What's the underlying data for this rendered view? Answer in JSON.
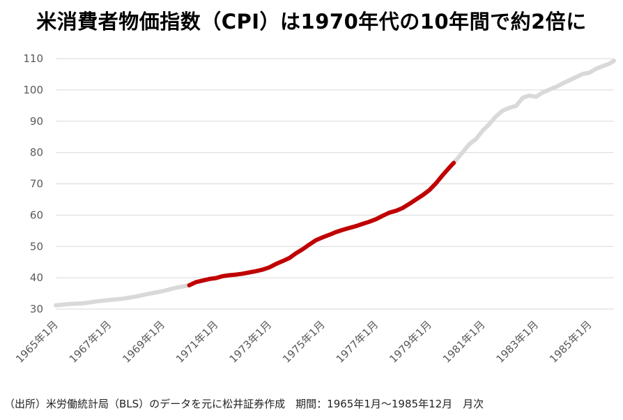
{
  "title": "米消費者物価指数（CPI）は1970年代の10年間で約2倍に",
  "source": "（出所）米労働統計局（BLS）のデータを元に松井証券作成　期間：1965年1月～1985年12月　月次",
  "colors": {
    "base_line": "#d9d9d9",
    "highlight_line": "#c00000",
    "grid": "#d9d9d9",
    "axis_text": "#595959"
  },
  "chart_data": {
    "type": "line",
    "title": "米消費者物価指数（CPI）は1970年代の10年間で約2倍に",
    "xlabel": "",
    "ylabel": "",
    "ylim": [
      30,
      110
    ],
    "yticks": [
      "30",
      "40",
      "50",
      "60",
      "70",
      "80",
      "90",
      "100",
      "110"
    ],
    "xticks": [
      "1965年1月",
      "1967年1月",
      "1969年1月",
      "1971年1月",
      "1973年1月",
      "1975年1月",
      "1977年1月",
      "1979年1月",
      "1981年1月",
      "1983年1月",
      "1985年1月"
    ],
    "x_range": [
      "1965-01",
      "1985-12"
    ],
    "grid": true,
    "highlight_range": [
      "1970-01",
      "1979-12"
    ],
    "series": [
      {
        "points": [
          [
            "1965-01",
            31.2
          ],
          [
            "1965-07",
            31.6
          ],
          [
            "1966-01",
            31.8
          ],
          [
            "1966-07",
            32.4
          ],
          [
            "1967-01",
            32.9
          ],
          [
            "1967-07",
            33.3
          ],
          [
            "1968-01",
            34.0
          ],
          [
            "1968-07",
            34.9
          ],
          [
            "1969-01",
            35.7
          ],
          [
            "1969-07",
            36.8
          ],
          [
            "1970-01",
            37.6
          ],
          [
            "1970-04",
            38.6
          ],
          [
            "1970-07",
            39.1
          ],
          [
            "1970-10",
            39.6
          ],
          [
            "1971-01",
            39.9
          ],
          [
            "1971-04",
            40.5
          ],
          [
            "1971-07",
            40.8
          ],
          [
            "1971-10",
            41.0
          ],
          [
            "1972-01",
            41.3
          ],
          [
            "1972-04",
            41.7
          ],
          [
            "1972-07",
            42.1
          ],
          [
            "1972-10",
            42.6
          ],
          [
            "1973-01",
            43.3
          ],
          [
            "1973-04",
            44.4
          ],
          [
            "1973-07",
            45.3
          ],
          [
            "1973-10",
            46.3
          ],
          [
            "1974-01",
            47.8
          ],
          [
            "1974-04",
            49.1
          ],
          [
            "1974-07",
            50.6
          ],
          [
            "1974-10",
            52.0
          ],
          [
            "1975-01",
            52.9
          ],
          [
            "1975-04",
            53.7
          ],
          [
            "1975-07",
            54.6
          ],
          [
            "1975-10",
            55.3
          ],
          [
            "1976-01",
            55.9
          ],
          [
            "1976-04",
            56.5
          ],
          [
            "1976-07",
            57.2
          ],
          [
            "1976-10",
            57.9
          ],
          [
            "1977-01",
            58.7
          ],
          [
            "1977-04",
            59.8
          ],
          [
            "1977-07",
            60.8
          ],
          [
            "1977-10",
            61.4
          ],
          [
            "1978-01",
            62.3
          ],
          [
            "1978-04",
            63.6
          ],
          [
            "1978-07",
            65.0
          ],
          [
            "1978-10",
            66.4
          ],
          [
            "1979-01",
            68.0
          ],
          [
            "1979-04",
            70.2
          ],
          [
            "1979-07",
            72.8
          ],
          [
            "1979-10",
            75.2
          ],
          [
            "1979-12",
            76.7
          ],
          [
            "1980-04",
            80.1
          ],
          [
            "1980-07",
            82.7
          ],
          [
            "1980-10",
            84.3
          ],
          [
            "1981-01",
            87.0
          ],
          [
            "1981-04",
            89.1
          ],
          [
            "1981-07",
            91.6
          ],
          [
            "1981-10",
            93.4
          ],
          [
            "1982-01",
            94.3
          ],
          [
            "1982-04",
            94.9
          ],
          [
            "1982-07",
            97.5
          ],
          [
            "1982-10",
            98.2
          ],
          [
            "1983-01",
            97.8
          ],
          [
            "1983-04",
            99.2
          ],
          [
            "1983-07",
            100.1
          ],
          [
            "1983-10",
            101.0
          ],
          [
            "1984-01",
            102.1
          ],
          [
            "1984-04",
            103.1
          ],
          [
            "1984-07",
            104.1
          ],
          [
            "1984-10",
            105.1
          ],
          [
            "1985-01",
            105.5
          ],
          [
            "1985-04",
            106.8
          ],
          [
            "1985-07",
            107.6
          ],
          [
            "1985-10",
            108.4
          ],
          [
            "1985-12",
            109.3
          ]
        ]
      }
    ]
  }
}
